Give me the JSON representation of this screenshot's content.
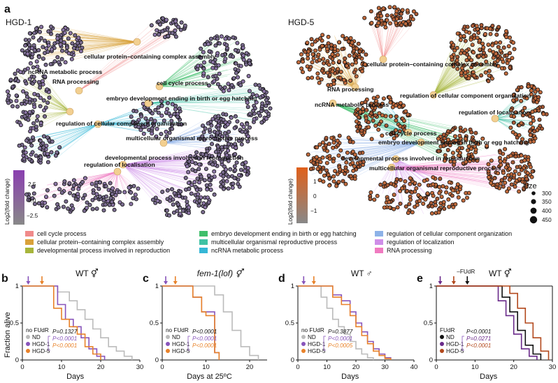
{
  "panel_a": {
    "label": "a",
    "networks": [
      {
        "id": "hgd1",
        "title": "HGD-1",
        "node_fill": "#7a6c8f",
        "node_fill_alt": "#8c76a6",
        "terms": [
          "cellular protein–containing complex assembly",
          "ncRNA metabolic process",
          "RNA processing",
          "cell cycle process",
          "embryo development ending in birth or egg hatching",
          "regulation of cellular component organisation",
          "multicellular organismal reproductive process",
          "developmental process involved in reproduction",
          "regulation of localisation"
        ]
      },
      {
        "id": "hgd5",
        "title": "HGD-5",
        "node_fill": "#c06a3c",
        "node_fill_alt": "#a85a36",
        "terms": [
          "cellular protein–containing complex assembly",
          "RNA processing",
          "regulation of cellular component organisation",
          "ncRNA metabolic process",
          "regulation of localisation",
          "cell cycle process",
          "embryo development ending in birth or egg hatching",
          "developmental process involved in reproduction",
          "multicellular organismal reproductive process"
        ]
      }
    ],
    "colorbar_hgd1": {
      "label": "Log2(fold change)",
      "ticks": [
        "2.5",
        "0.0",
        "−2.5"
      ],
      "low": "#888888",
      "high": "#8a3fb0"
    },
    "colorbar_hgd5": {
      "label": "Log2(fold change)",
      "ticks": [
        "1",
        "0",
        "−1"
      ],
      "low": "#888888",
      "high": "#e0601a"
    },
    "size_legend": {
      "title": "size",
      "values": [
        "300",
        "350",
        "400",
        "450"
      ]
    },
    "go_legend": [
      {
        "label": "cell cycle process",
        "color": "#f08a8a"
      },
      {
        "label": "cellular protein–containing complex assembly",
        "color": "#d9a13a"
      },
      {
        "label": "developmental process involved in reproduction",
        "color": "#a7b53b"
      },
      {
        "label": "embryo development ending in birth or egg hatching",
        "color": "#3fbf6b"
      },
      {
        "label": "multicellular organismal reproductive process",
        "color": "#3fc2a4"
      },
      {
        "label": "ncRNA metabolic process",
        "color": "#35b7d6"
      },
      {
        "label": "regulation of cellular component organization",
        "color": "#8db2e8"
      },
      {
        "label": "regulation of localization",
        "color": "#cf8ee8"
      },
      {
        "label": "RNA processing",
        "color": "#f07ac0"
      }
    ]
  },
  "survival": {
    "ylabel": "Fraction alive",
    "colors": {
      "ND": "#bbbbbb",
      "HGD1": "#8855bb",
      "HGD5": "#e8822a",
      "black": "#111111",
      "HGD1e": "#6a2a8a",
      "HGD5e": "#b2481c"
    },
    "panels": [
      {
        "label": "b",
        "title": "WT ⚥",
        "xlabel": "Days",
        "xticks": [
          0,
          10,
          20,
          30
        ],
        "xmax": 30,
        "legend_title": "no FUdR",
        "groups": [
          "ND",
          "HGD-1",
          "HGD-5"
        ],
        "p": [
          {
            "text": "P=0.1327",
            "color": "#111111"
          },
          {
            "text": "P<0.0001",
            "color": "#8855bb"
          },
          {
            "text": "P<0.0001",
            "color": "#e8822a"
          }
        ],
        "arrows": [
          {
            "day": 1.5,
            "color": "#8855bb"
          },
          {
            "day": 5,
            "color": "#e8822a"
          }
        ],
        "chart_data": {
          "type": "line",
          "ylim": [
            0,
            1
          ],
          "series": [
            {
              "name": "ND",
              "x": [
                0,
                6,
                9,
                12,
                14,
                16,
                18,
                20,
                22,
                24,
                26,
                28
              ],
              "values": [
                1,
                1,
                0.92,
                0.8,
                0.68,
                0.55,
                0.42,
                0.3,
                0.18,
                0.12,
                0.05,
                0
              ]
            },
            {
              "name": "HGD-1",
              "x": [
                0,
                6,
                9,
                11,
                13,
                15,
                17,
                19,
                21
              ],
              "values": [
                1,
                1,
                0.75,
                0.55,
                0.45,
                0.3,
                0.15,
                0.05,
                0
              ]
            },
            {
              "name": "HGD-5",
              "x": [
                0,
                6,
                8,
                10,
                12,
                14,
                16,
                18,
                20
              ],
              "values": [
                1,
                1,
                0.7,
                0.55,
                0.45,
                0.35,
                0.18,
                0.08,
                0
              ]
            }
          ]
        }
      },
      {
        "label": "c",
        "title": "fem-1(lof) ⚥",
        "xlabel": "Days at 25ºC",
        "xticks": [
          0,
          10,
          20
        ],
        "xmax": 24,
        "legend_title": "no FUdR",
        "groups": [
          "ND",
          "HGD-1",
          "HGD-5"
        ],
        "p": [
          {
            "text": "P<0.0001",
            "color": "#111111"
          },
          {
            "text": "P<0.0001",
            "color": "#8855bb"
          },
          {
            "text": "P<0.0001",
            "color": "#e8822a"
          }
        ],
        "arrows": [
          {
            "day": 0.8,
            "color": "#8855bb"
          },
          {
            "day": 3,
            "color": "#e8822a"
          }
        ],
        "chart_data": {
          "type": "line",
          "ylim": [
            0,
            1
          ],
          "series": [
            {
              "name": "ND",
              "x": [
                0,
                10,
                12,
                14,
                16,
                18,
                20,
                22
              ],
              "values": [
                1,
                1,
                0.88,
                0.65,
                0.4,
                0.18,
                0.06,
                0
              ]
            },
            {
              "name": "HGD-1",
              "x": [
                0,
                5,
                7,
                9,
                11,
                12,
                13
              ],
              "values": [
                1,
                1,
                0.85,
                0.65,
                0.65,
                0.1,
                0
              ]
            },
            {
              "name": "HGD-5",
              "x": [
                0,
                5,
                7,
                9,
                10,
                12,
                13
              ],
              "values": [
                1,
                1,
                0.85,
                0.65,
                0.6,
                0.1,
                0
              ]
            }
          ]
        }
      },
      {
        "label": "d",
        "title": "WT ♂",
        "xlabel": "Days",
        "xticks": [
          0,
          10,
          20,
          30,
          40
        ],
        "xmax": 40,
        "legend_title": "no FUdR",
        "groups": [
          "ND",
          "HGD-1",
          "HGD-5"
        ],
        "p": [
          {
            "text": "P=0.3877",
            "color": "#111111"
          },
          {
            "text": "P<0.0001",
            "color": "#8855bb"
          },
          {
            "text": "P<0.0005",
            "color": "#e8822a"
          }
        ],
        "arrows": [
          {
            "day": 2,
            "color": "#8855bb"
          },
          {
            "day": 5.5,
            "color": "#e8822a"
          }
        ],
        "chart_data": {
          "type": "line",
          "ylim": [
            0,
            1
          ],
          "series": [
            {
              "name": "ND",
              "x": [
                0,
                5,
                8,
                10,
                12,
                14,
                16,
                18,
                20,
                22,
                24,
                26
              ],
              "values": [
                1,
                1,
                0.85,
                0.7,
                0.55,
                0.45,
                0.35,
                0.25,
                0.15,
                0.08,
                0.03,
                0
              ]
            },
            {
              "name": "HGD-1",
              "x": [
                0,
                8,
                12,
                15,
                18,
                20,
                22,
                24,
                26,
                28,
                30,
                32
              ],
              "values": [
                1,
                1,
                0.88,
                0.8,
                0.65,
                0.5,
                0.38,
                0.25,
                0.15,
                0.08,
                0.03,
                0
              ]
            },
            {
              "name": "HGD-5",
              "x": [
                0,
                8,
                12,
                15,
                18,
                20,
                22,
                24,
                26,
                28,
                30,
                32
              ],
              "values": [
                1,
                1,
                0.85,
                0.75,
                0.6,
                0.45,
                0.33,
                0.22,
                0.12,
                0.06,
                0.02,
                0
              ]
            }
          ]
        }
      },
      {
        "label": "e",
        "title": "WT ⚥",
        "xlabel": "Days",
        "xticks": [
          0,
          10,
          20,
          30
        ],
        "xmax": 30,
        "fudr_arrow_label": "–FUdR",
        "legend_title": "FUdR",
        "groups": [
          "ND",
          "HGD-1",
          "HGD-5"
        ],
        "p": [
          {
            "text": "P<0.0001",
            "color": "#111111"
          },
          {
            "text": "P=0.0271",
            "color": "#6a2a8a"
          },
          {
            "text": "P<0.0001",
            "color": "#b2481c"
          }
        ],
        "arrows": [
          {
            "day": 1,
            "color": "#6a2a8a"
          },
          {
            "day": 4.5,
            "color": "#b2481c"
          },
          {
            "day": 8,
            "color": "#111111"
          }
        ],
        "chart_data": {
          "type": "line",
          "ylim": [
            0,
            1
          ],
          "series": [
            {
              "name": "ND",
              "x": [
                0,
                14,
                17,
                19,
                21,
                23,
                25,
                27
              ],
              "values": [
                1,
                1,
                0.85,
                0.65,
                0.4,
                0.2,
                0.08,
                0
              ]
            },
            {
              "name": "HGD-1",
              "x": [
                0,
                14,
                16,
                18,
                20,
                22,
                24,
                26
              ],
              "values": [
                1,
                1,
                0.8,
                0.6,
                0.35,
                0.15,
                0.05,
                0
              ]
            },
            {
              "name": "HGD-5",
              "x": [
                0,
                16,
                19,
                21,
                23,
                25,
                27,
                29
              ],
              "values": [
                1,
                1,
                0.9,
                0.7,
                0.5,
                0.3,
                0.12,
                0
              ]
            }
          ]
        }
      }
    ]
  }
}
